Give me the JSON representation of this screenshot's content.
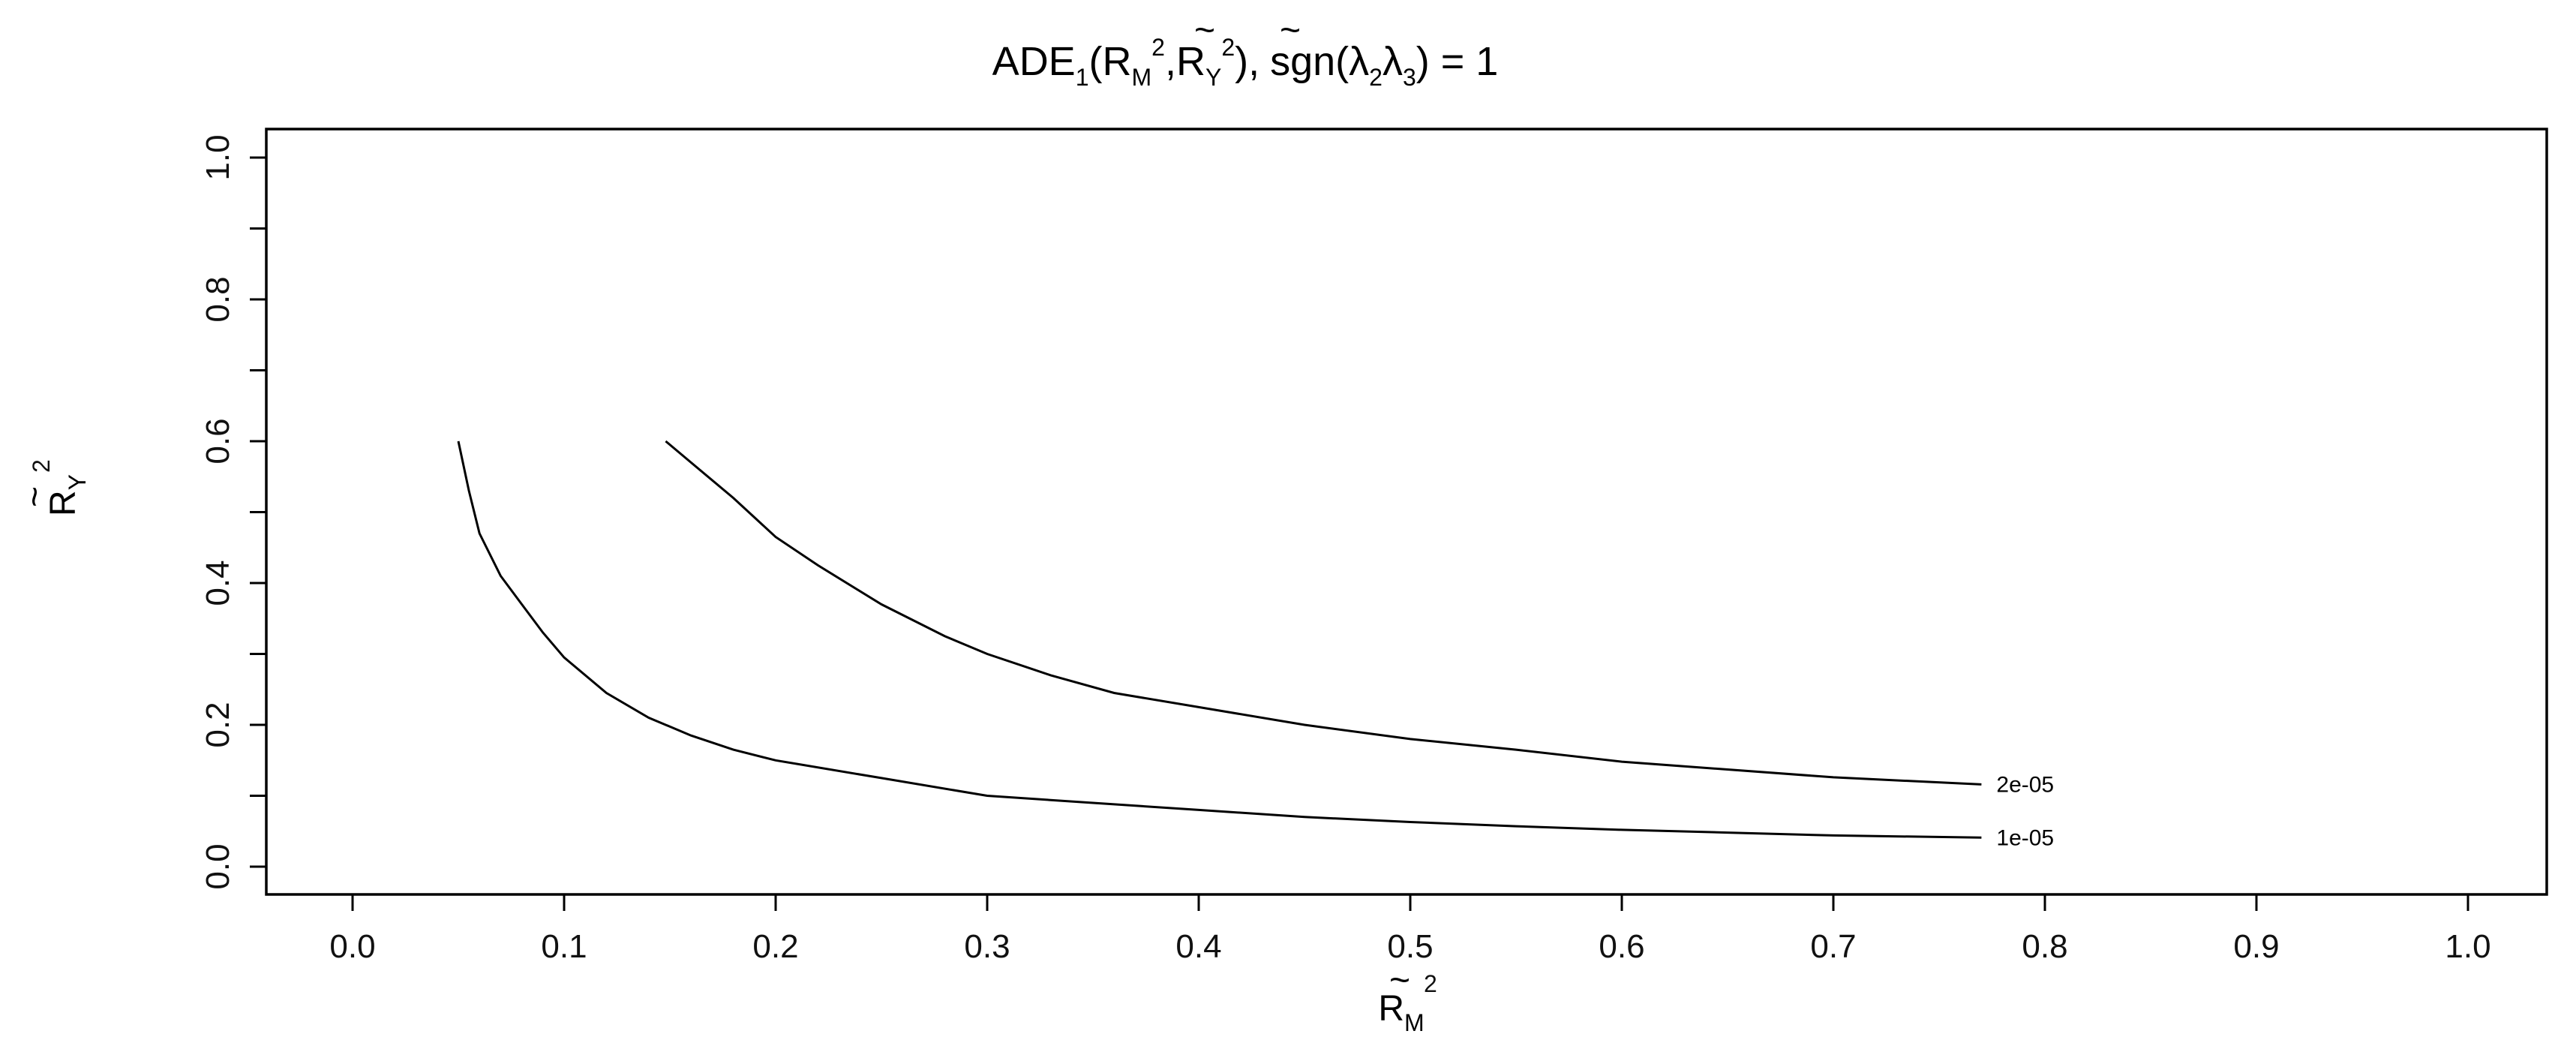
{
  "chart_data": {
    "type": "line",
    "title": {
      "prefix": "ADE",
      "subscript": "1",
      "tilde_symbol": "~",
      "args_open": "(",
      "arg1_base": "R",
      "arg1_sub": "M",
      "sup": "2",
      "separator": ",",
      "arg2_base": "R",
      "arg2_sub": "Y",
      "args_close": "),",
      "sgn_text": "sgn(",
      "lambda": "λ",
      "lambda1_sub": "2",
      "lambda2_sub": "3",
      "sgn_close": ") = 1"
    },
    "xlabel": {
      "base": "R",
      "sub": "M",
      "sup": "2",
      "tilde": "~"
    },
    "ylabel": {
      "base": "R",
      "sub": "Y",
      "sup": "2",
      "tilde": "~"
    },
    "xlim": [
      0.0,
      1.0
    ],
    "ylim": [
      0.0,
      1.0
    ],
    "x_ticks": [
      "0.0",
      "0.1",
      "0.2",
      "0.3",
      "0.4",
      "0.5",
      "0.6",
      "0.7",
      "0.8",
      "0.9",
      "1.0"
    ],
    "y_ticks": [
      "0.0",
      "0.2",
      "0.4",
      "0.6",
      "0.8",
      "1.0"
    ],
    "y_minor_ticks": [
      0.1,
      0.3,
      0.5,
      0.7,
      0.9
    ],
    "grid": false,
    "series": [
      {
        "name": "1e-05",
        "points": [
          [
            0.05,
            0.6
          ],
          [
            0.055,
            0.53
          ],
          [
            0.06,
            0.47
          ],
          [
            0.07,
            0.41
          ],
          [
            0.08,
            0.37
          ],
          [
            0.09,
            0.33
          ],
          [
            0.1,
            0.295
          ],
          [
            0.12,
            0.245
          ],
          [
            0.14,
            0.21
          ],
          [
            0.16,
            0.185
          ],
          [
            0.18,
            0.165
          ],
          [
            0.2,
            0.15
          ],
          [
            0.25,
            0.125
          ],
          [
            0.3,
            0.1
          ],
          [
            0.35,
            0.09
          ],
          [
            0.4,
            0.08
          ],
          [
            0.45,
            0.07
          ],
          [
            0.5,
            0.063
          ],
          [
            0.55,
            0.057
          ],
          [
            0.6,
            0.052
          ],
          [
            0.65,
            0.048
          ],
          [
            0.7,
            0.044
          ],
          [
            0.77,
            0.041
          ]
        ]
      },
      {
        "name": "2e-05",
        "points": [
          [
            0.148,
            0.6
          ],
          [
            0.16,
            0.57
          ],
          [
            0.18,
            0.52
          ],
          [
            0.2,
            0.465
          ],
          [
            0.22,
            0.425
          ],
          [
            0.25,
            0.37
          ],
          [
            0.28,
            0.325
          ],
          [
            0.3,
            0.3
          ],
          [
            0.33,
            0.27
          ],
          [
            0.36,
            0.245
          ],
          [
            0.4,
            0.225
          ],
          [
            0.45,
            0.2
          ],
          [
            0.5,
            0.18
          ],
          [
            0.55,
            0.165
          ],
          [
            0.6,
            0.148
          ],
          [
            0.65,
            0.137
          ],
          [
            0.7,
            0.126
          ],
          [
            0.77,
            0.116
          ]
        ]
      }
    ]
  }
}
